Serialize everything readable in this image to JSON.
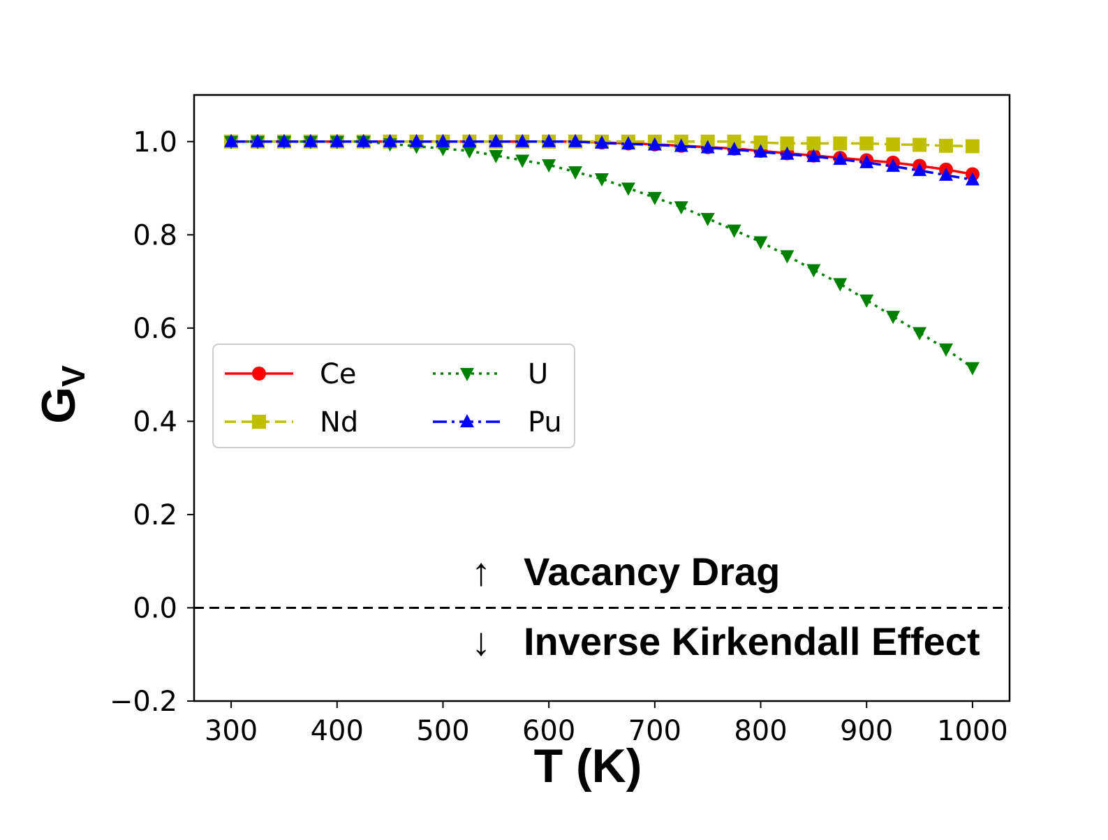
{
  "chart_data": {
    "type": "line",
    "xlabel": "T (K)",
    "ylabel": "G",
    "ylabel_sub": "V",
    "xlim": [
      265,
      1035
    ],
    "ylim": [
      -0.2,
      1.1
    ],
    "xticks": [
      300,
      400,
      500,
      600,
      700,
      800,
      900,
      1000
    ],
    "yticks": [
      -0.2,
      0.0,
      0.2,
      0.4,
      0.6,
      0.8,
      1.0
    ],
    "ytick_labels": [
      "−0.2",
      "0.0",
      "0.2",
      "0.4",
      "0.6",
      "0.8",
      "1.0"
    ],
    "x": [
      300,
      325,
      350,
      375,
      400,
      425,
      450,
      475,
      500,
      525,
      550,
      575,
      600,
      625,
      650,
      675,
      700,
      725,
      750,
      775,
      800,
      825,
      850,
      875,
      900,
      925,
      950,
      975,
      1000
    ],
    "series": [
      {
        "name": "Ce",
        "color": "#ff0000",
        "linestyle": "solid",
        "marker": "circle",
        "values": [
          1.0,
          1.0,
          1.0,
          1.0,
          1.0,
          1.0,
          1.0,
          1.0,
          1.0,
          1.0,
          1.0,
          1.0,
          1.0,
          1.0,
          0.998,
          0.996,
          0.994,
          0.991,
          0.988,
          0.985,
          0.98,
          0.975,
          0.97,
          0.965,
          0.96,
          0.955,
          0.948,
          0.94,
          0.93
        ]
      },
      {
        "name": "Nd",
        "color": "#bfbf00",
        "linestyle": "dashed",
        "marker": "square",
        "values": [
          1.0,
          1.0,
          1.0,
          1.0,
          1.0,
          1.0,
          1.0,
          1.0,
          1.0,
          1.0,
          1.0,
          1.0,
          1.0,
          1.0,
          1.0,
          1.0,
          1.0,
          1.0,
          1.0,
          1.0,
          0.998,
          0.996,
          0.996,
          0.996,
          0.996,
          0.994,
          0.993,
          0.991,
          0.99
        ]
      },
      {
        "name": "U",
        "color": "#008000",
        "linestyle": "dotted",
        "marker": "triangle-down",
        "values": [
          1.0,
          1.0,
          1.0,
          1.0,
          1.0,
          1.0,
          0.995,
          0.99,
          0.985,
          0.98,
          0.97,
          0.96,
          0.95,
          0.935,
          0.92,
          0.9,
          0.88,
          0.86,
          0.835,
          0.81,
          0.785,
          0.755,
          0.725,
          0.695,
          0.66,
          0.625,
          0.59,
          0.555,
          0.515
        ]
      },
      {
        "name": "Pu",
        "color": "#0000ff",
        "linestyle": "dashdot",
        "marker": "triangle-up",
        "values": [
          1.0,
          1.0,
          1.0,
          1.0,
          1.0,
          1.0,
          1.0,
          1.0,
          1.0,
          1.0,
          1.0,
          1.0,
          1.0,
          1.0,
          0.997,
          0.995,
          0.993,
          0.99,
          0.987,
          0.983,
          0.978,
          0.973,
          0.968,
          0.962,
          0.955,
          0.947,
          0.938,
          0.928,
          0.918
        ]
      }
    ],
    "reference_line": {
      "y": 0.0,
      "color": "#000000",
      "linestyle": "dashed"
    },
    "annotations": [
      {
        "arrow": "↑",
        "text": "Vacancy Drag"
      },
      {
        "arrow": "↓",
        "text": "Inverse Kirkendall Effect"
      }
    ],
    "legend": {
      "placement": "center-left",
      "columns": 2,
      "order": [
        "Ce",
        "Nd",
        "U",
        "Pu"
      ]
    },
    "grid": false
  }
}
